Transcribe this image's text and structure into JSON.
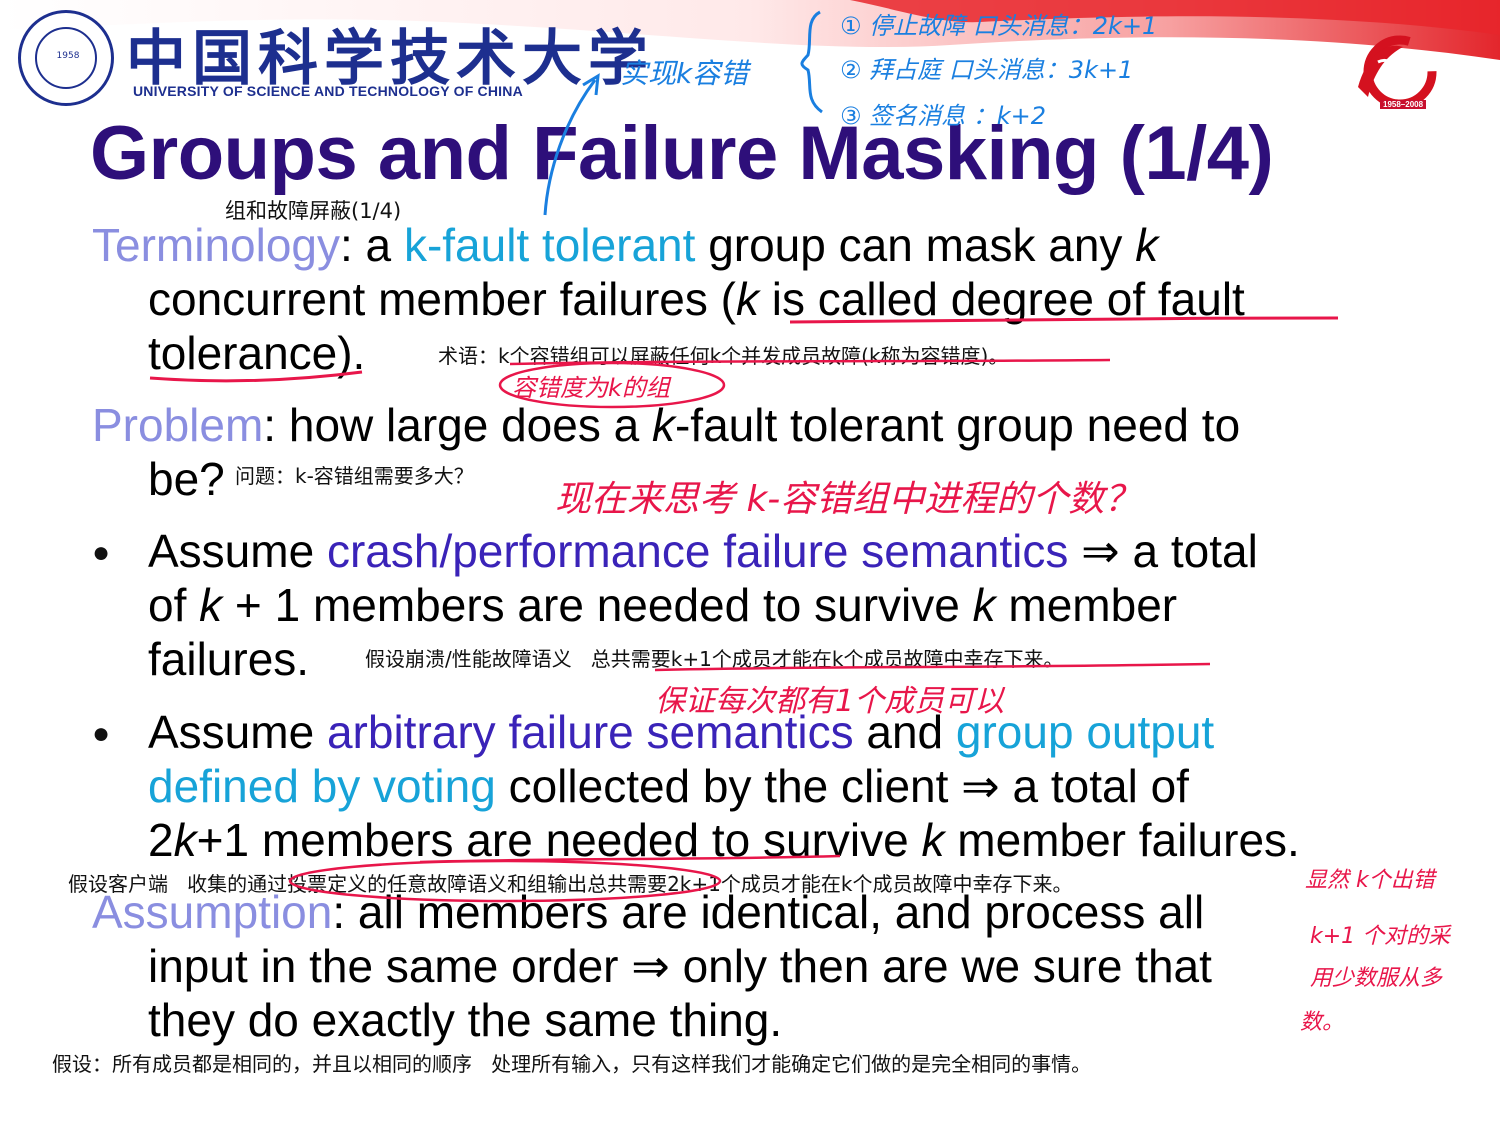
{
  "header": {
    "university_cn": "中国科学技术大学",
    "university_en": "UNIVERSITY OF SCIENCE AND TECHNOLOGY OF CHINA",
    "logo_year": "1958",
    "anniversary_years": "1958–2008"
  },
  "slide": {
    "title": "Groups and Failure Masking (1/4)",
    "title_cn": "组和故障屏蔽(1/4)",
    "terminology": {
      "label": "Terminology",
      "t1": ": a ",
      "highlight": "k-fault tolerant",
      "t2": " group can mask any ",
      "k": "k",
      "line2a": "concurrent member failures (",
      "line2k": "k",
      "line2b": " is called degree of fault",
      "line3": "tolerance).",
      "cn": "术语：k个容错组可以屏蔽任何k个并发成员故障(k称为容错度)。"
    },
    "problem": {
      "label": "Problem",
      "t1": ": how large does a ",
      "k": "k",
      "t2": "-fault tolerant group need to",
      "line2": "be?",
      "cn": "问题：k-容错组需要多大？"
    },
    "bullet1": {
      "t1": "Assume ",
      "highlight": "crash/performance failure semantics",
      "t2": " ⇒ a total",
      "l2a": "of ",
      "l2k": "k",
      "l2b": " + 1 members are needed to survive ",
      "l2k2": "k",
      "l2c": " member",
      "l3": "failures.",
      "cn": "假设崩溃/性能故障语义   总共需要k+1个成员才能在k个成员故障中幸存下来。"
    },
    "bullet2": {
      "t1": "Assume ",
      "highlight1": "arbitrary failure semantics",
      "t2": " and ",
      "highlight2a": "group output",
      "highlight2b": "defined by voting",
      "t3": " collected by the client ⇒ a total of",
      "l3a": "2",
      "l3k": "k",
      "l3b": "+1 members are needed to survive ",
      "l3k2": "k",
      "l3c": " member failures.",
      "cn": "假设客户端   收集的通过投票定义的任意故障语义和组输出总共需要2k+1个成员才能在k个成员故障中幸存下来。"
    },
    "assumption": {
      "label": "Assumption",
      "t1": ": all members are identical, and process all",
      "l2": "input in the same order ⇒ only then are we sure that",
      "l3": "they do exactly the same thing.",
      "cn": "假设：所有成员都是相同的，并且以相同的顺序   处理所有输入，只有这样我们才能确定它们做的是完全相同的事情。"
    }
  },
  "handwriting": {
    "blue_1": "实现k容错",
    "blue_2": "① 停止故障 口头消息：2k+1",
    "blue_3": "② 拜占庭 口头消息：3k+1",
    "blue_4": "③ 签名消息 ：k+2",
    "red_1": "容错度为k的组",
    "red_2": "现在来思考 k-容错组中进程的个数？",
    "red_3": "保证每次都有1个成员可以",
    "red_4a": "显然 k个出错",
    "red_4b": "k+1 个对的采",
    "red_4c": "用少数服从多",
    "red_4d": "数。"
  },
  "colors": {
    "title": "#2e0f7a",
    "lavender": "#8a8ee0",
    "cyan": "#17a3d8",
    "purple": "#3a23b8",
    "ink_red": "#e8164a",
    "ink_blue": "#1a7fe0",
    "brand_blue": "#1d2f8f"
  }
}
